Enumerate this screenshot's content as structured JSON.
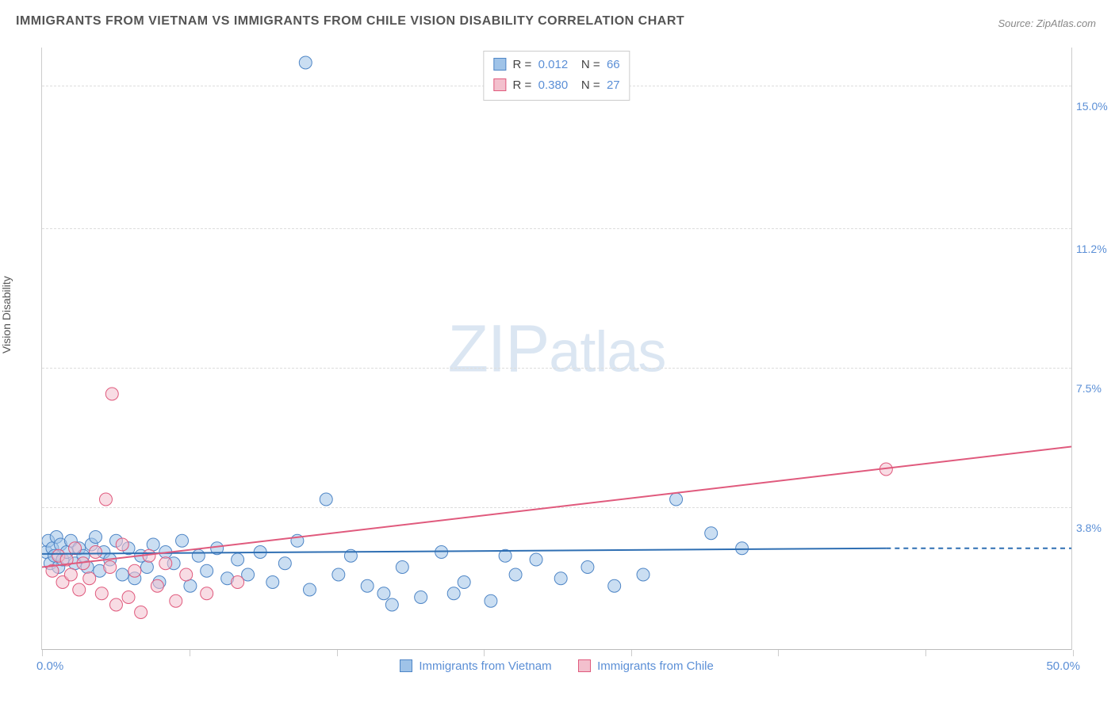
{
  "title": "IMMIGRANTS FROM VIETNAM VS IMMIGRANTS FROM CHILE VISION DISABILITY CORRELATION CHART",
  "source": "Source: ZipAtlas.com",
  "ylabel": "Vision Disability",
  "watermark_big": "ZIP",
  "watermark_small": "atlas",
  "chart": {
    "type": "scatter",
    "xlim": [
      0,
      50
    ],
    "ylim": [
      0,
      16
    ],
    "x_tick_positions": [
      0,
      7.14,
      14.29,
      21.43,
      28.57,
      35.71,
      42.86,
      50
    ],
    "x_start_label": "0.0%",
    "x_end_label": "50.0%",
    "y_gridlines": [
      {
        "value": 3.8,
        "label": "3.8%"
      },
      {
        "value": 7.5,
        "label": "7.5%"
      },
      {
        "value": 11.2,
        "label": "11.2%"
      },
      {
        "value": 15.0,
        "label": "15.0%"
      }
    ],
    "background_color": "#ffffff",
    "grid_color": "#dddddd",
    "marker_radius": 8,
    "marker_opacity": 0.55,
    "axis_label_color": "#5b8fd6",
    "series": {
      "vietnam": {
        "label": "Immigrants from Vietnam",
        "color_fill": "#9fc3e8",
        "color_stroke": "#4f86c6",
        "R": "0.012",
        "N": "66",
        "trend": {
          "x1": 0,
          "y1": 2.55,
          "x2": 41,
          "y2": 2.7,
          "solid_until_x": 41,
          "dash_to_x": 50,
          "dash_y": 2.7,
          "stroke": "#2f6fb3",
          "width": 2
        },
        "points": [
          [
            0.2,
            2.6
          ],
          [
            0.3,
            2.9
          ],
          [
            0.4,
            2.3
          ],
          [
            0.5,
            2.7
          ],
          [
            0.6,
            2.5
          ],
          [
            0.7,
            3.0
          ],
          [
            0.8,
            2.2
          ],
          [
            0.9,
            2.8
          ],
          [
            1.0,
            2.4
          ],
          [
            1.2,
            2.6
          ],
          [
            1.4,
            2.9
          ],
          [
            1.6,
            2.3
          ],
          [
            1.8,
            2.7
          ],
          [
            2.0,
            2.5
          ],
          [
            2.2,
            2.2
          ],
          [
            2.4,
            2.8
          ],
          [
            2.6,
            3.0
          ],
          [
            2.8,
            2.1
          ],
          [
            3.0,
            2.6
          ],
          [
            3.3,
            2.4
          ],
          [
            3.6,
            2.9
          ],
          [
            3.9,
            2.0
          ],
          [
            4.2,
            2.7
          ],
          [
            4.5,
            1.9
          ],
          [
            4.8,
            2.5
          ],
          [
            5.1,
            2.2
          ],
          [
            5.4,
            2.8
          ],
          [
            5.7,
            1.8
          ],
          [
            6.0,
            2.6
          ],
          [
            6.4,
            2.3
          ],
          [
            6.8,
            2.9
          ],
          [
            7.2,
            1.7
          ],
          [
            7.6,
            2.5
          ],
          [
            8.0,
            2.1
          ],
          [
            8.5,
            2.7
          ],
          [
            9.0,
            1.9
          ],
          [
            9.5,
            2.4
          ],
          [
            10.0,
            2.0
          ],
          [
            10.6,
            2.6
          ],
          [
            11.2,
            1.8
          ],
          [
            11.8,
            2.3
          ],
          [
            12.4,
            2.9
          ],
          [
            13.0,
            1.6
          ],
          [
            13.8,
            4.0
          ],
          [
            14.4,
            2.0
          ],
          [
            15.0,
            2.5
          ],
          [
            15.8,
            1.7
          ],
          [
            16.6,
            1.5
          ],
          [
            17.5,
            2.2
          ],
          [
            18.4,
            1.4
          ],
          [
            19.4,
            2.6
          ],
          [
            20.5,
            1.8
          ],
          [
            21.8,
            1.3
          ],
          [
            23.0,
            2.0
          ],
          [
            24.0,
            2.4
          ],
          [
            25.2,
            1.9
          ],
          [
            26.5,
            2.2
          ],
          [
            27.8,
            1.7
          ],
          [
            29.2,
            2.0
          ],
          [
            30.8,
            4.0
          ],
          [
            32.5,
            3.1
          ],
          [
            34.0,
            2.7
          ],
          [
            12.8,
            15.6
          ],
          [
            17.0,
            1.2
          ],
          [
            20.0,
            1.5
          ],
          [
            22.5,
            2.5
          ]
        ]
      },
      "chile": {
        "label": "Immigrants from Chile",
        "color_fill": "#f3c0cd",
        "color_stroke": "#e05a7d",
        "R": "0.380",
        "N": "27",
        "trend": {
          "x1": 0,
          "y1": 2.2,
          "x2": 50,
          "y2": 5.4,
          "solid_until_x": 50,
          "stroke": "#e05a7d",
          "width": 2
        },
        "points": [
          [
            0.5,
            2.1
          ],
          [
            0.8,
            2.5
          ],
          [
            1.0,
            1.8
          ],
          [
            1.2,
            2.4
          ],
          [
            1.4,
            2.0
          ],
          [
            1.6,
            2.7
          ],
          [
            1.8,
            1.6
          ],
          [
            2.0,
            2.3
          ],
          [
            2.3,
            1.9
          ],
          [
            2.6,
            2.6
          ],
          [
            2.9,
            1.5
          ],
          [
            3.1,
            4.0
          ],
          [
            3.3,
            2.2
          ],
          [
            3.6,
            1.2
          ],
          [
            3.9,
            2.8
          ],
          [
            4.2,
            1.4
          ],
          [
            4.5,
            2.1
          ],
          [
            4.8,
            1.0
          ],
          [
            5.2,
            2.5
          ],
          [
            5.6,
            1.7
          ],
          [
            6.0,
            2.3
          ],
          [
            6.5,
            1.3
          ],
          [
            7.0,
            2.0
          ],
          [
            8.0,
            1.5
          ],
          [
            9.5,
            1.8
          ],
          [
            3.4,
            6.8
          ],
          [
            41.0,
            4.8
          ]
        ]
      }
    }
  },
  "correlation_legend": {
    "rows": [
      {
        "series": "vietnam",
        "R_label": "R  =",
        "N_label": "N  ="
      },
      {
        "series": "chile",
        "R_label": "R  =",
        "N_label": "N  ="
      }
    ]
  }
}
